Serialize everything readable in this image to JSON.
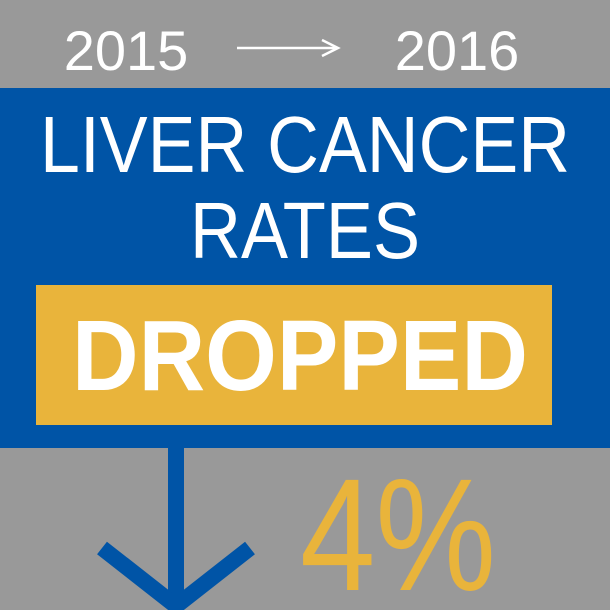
{
  "header": {
    "from_year": "2015",
    "to_year": "2016"
  },
  "title": {
    "lines": [
      "LIVER CANCER",
      "RATES"
    ]
  },
  "highlight": "DROPPED",
  "change": {
    "label": "4%"
  }
}
